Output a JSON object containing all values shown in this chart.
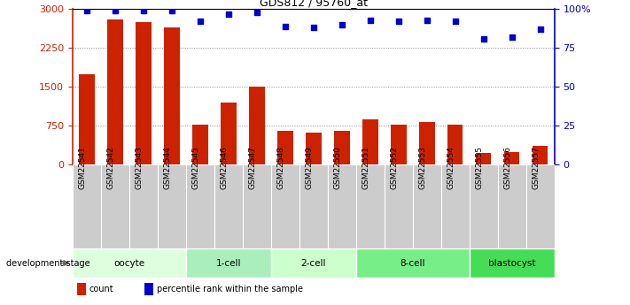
{
  "title": "GDS812 / 95760_at",
  "samples": [
    "GSM22541",
    "GSM22542",
    "GSM22543",
    "GSM22544",
    "GSM22545",
    "GSM22546",
    "GSM22547",
    "GSM22548",
    "GSM22549",
    "GSM22550",
    "GSM22551",
    "GSM22552",
    "GSM22553",
    "GSM22554",
    "GSM22555",
    "GSM22556",
    "GSM22557"
  ],
  "counts": [
    1750,
    2800,
    2750,
    2650,
    770,
    1200,
    1510,
    650,
    620,
    650,
    870,
    770,
    820,
    770,
    230,
    250,
    370
  ],
  "percentiles": [
    99,
    99,
    99,
    99,
    92,
    97,
    98,
    89,
    88,
    90,
    93,
    92,
    93,
    92,
    81,
    82,
    87
  ],
  "stages": [
    {
      "label": "oocyte",
      "start": 0,
      "end": 4,
      "color": "#ddffdd"
    },
    {
      "label": "1-cell",
      "start": 4,
      "end": 7,
      "color": "#aaeebb"
    },
    {
      "label": "2-cell",
      "start": 7,
      "end": 10,
      "color": "#ccffcc"
    },
    {
      "label": "8-cell",
      "start": 10,
      "end": 14,
      "color": "#77ee88"
    },
    {
      "label": "blastocyst",
      "start": 14,
      "end": 17,
      "color": "#44dd55"
    }
  ],
  "bar_color": "#cc2200",
  "dot_color": "#0000cc",
  "ylim_left": [
    0,
    3000
  ],
  "ylim_right": [
    0,
    100
  ],
  "yticks_left": [
    0,
    750,
    1500,
    2250,
    3000
  ],
  "yticks_right": [
    0,
    25,
    50,
    75,
    100
  ],
  "grid_color": "#888888",
  "bar_width": 0.55,
  "legend_items": [
    {
      "label": "count",
      "color": "#cc2200"
    },
    {
      "label": "percentile rank within the sample",
      "color": "#0000cc"
    }
  ]
}
